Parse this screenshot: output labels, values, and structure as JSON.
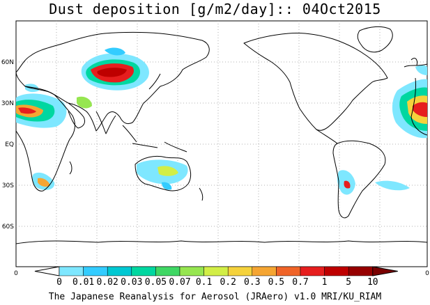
{
  "title": "Dust deposition [g/m2/day]:: 04Oct2015",
  "footer": "The Japanese Reanalysis for Aerosol (JRAero) v1.0 MRI/KU_RIAM",
  "lat_labels": [
    "60N",
    "30N",
    "EQ",
    "30S",
    "60S"
  ],
  "longitude_edge_labels": [
    "0",
    "0"
  ],
  "colorbar": {
    "bins": [
      {
        "label": "0",
        "color": "#ffffff"
      },
      {
        "label": "0.01",
        "color": "#7ee7ff"
      },
      {
        "label": "0.02",
        "color": "#33ccff"
      },
      {
        "label": "0.03",
        "color": "#00c8d2"
      },
      {
        "label": "0.05",
        "color": "#00d7a0"
      },
      {
        "label": "0.07",
        "color": "#3fd764"
      },
      {
        "label": "0.1",
        "color": "#96e650"
      },
      {
        "label": "0.2",
        "color": "#d2ee46"
      },
      {
        "label": "0.3",
        "color": "#f5d23c"
      },
      {
        "label": "0.5",
        "color": "#f5a532"
      },
      {
        "label": "0.7",
        "color": "#f06428"
      },
      {
        "label": "1",
        "color": "#e61e1e"
      },
      {
        "label": "5",
        "color": "#be0000"
      },
      {
        "label": "10",
        "color": "#960000"
      }
    ],
    "over_color": "#7a0000"
  }
}
